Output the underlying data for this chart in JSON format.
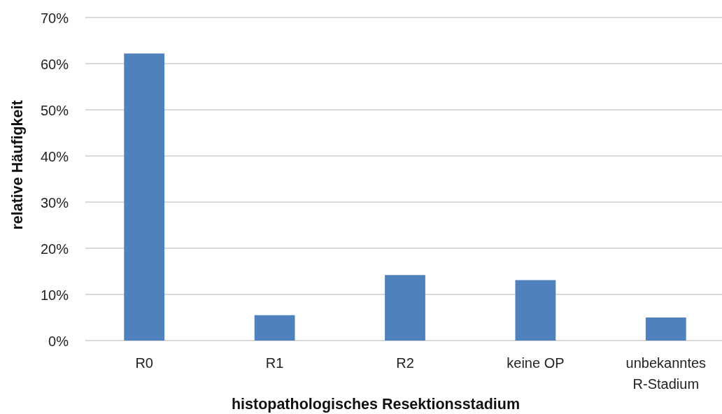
{
  "chart_data": {
    "type": "bar",
    "xlabel": "histopathologisches Resektionsstadium",
    "ylabel": "relative Häufigkeit",
    "categories": [
      "R0",
      "R1",
      "R2",
      "keine OP",
      "unbekanntes R-Stadium"
    ],
    "values": [
      62.2,
      5.5,
      14.2,
      13.1,
      5.0
    ],
    "color": "#4f81bd",
    "ylim": [
      0,
      70
    ],
    "yticks": [
      {
        "value": 0,
        "label": "0%"
      },
      {
        "value": 10,
        "label": "10%"
      },
      {
        "value": 20,
        "label": "20%"
      },
      {
        "value": 30,
        "label": "30%"
      },
      {
        "value": 40,
        "label": "40%"
      },
      {
        "value": 50,
        "label": "50%"
      },
      {
        "value": 60,
        "label": "60%"
      },
      {
        "value": 70,
        "label": "70%"
      }
    ],
    "grid": "y"
  }
}
